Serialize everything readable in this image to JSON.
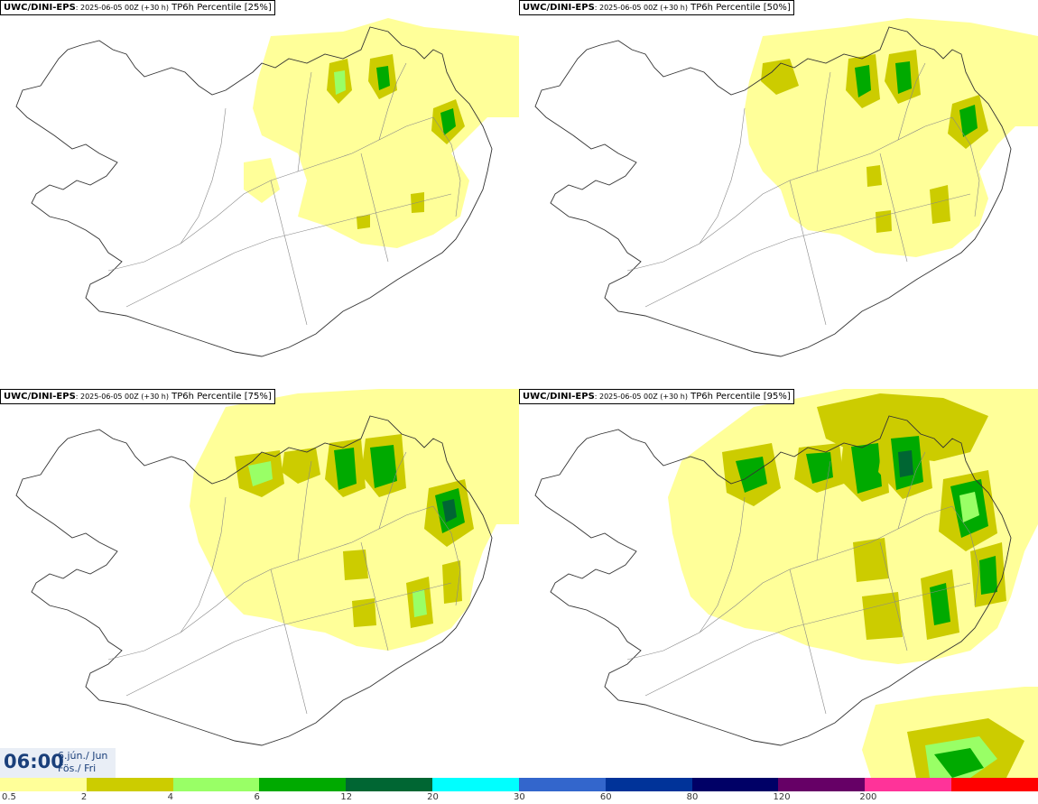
{
  "header": {
    "model": "UWC/DINI-EPS",
    "run": ": 2025-06-05 00Z (+30 h)",
    "field": "TP6h Percentile"
  },
  "panels": [
    {
      "percentile": "[25%]"
    },
    {
      "percentile": "[50%]"
    },
    {
      "percentile": "[75%]"
    },
    {
      "percentile": "[95%]"
    }
  ],
  "valid_time": {
    "time": "06:00",
    "date_line1": "6.jún./ Jun",
    "date_line2": "Fös./ Fri"
  },
  "colorbar": {
    "colors": [
      "#ffff99",
      "#cccc00",
      "#99ff66",
      "#00aa00",
      "#006633",
      "#00ffff",
      "#3366cc",
      "#003399",
      "#000066",
      "#660066",
      "#ff3399",
      "#ff0000"
    ],
    "labels": [
      "0.5",
      "2",
      "4",
      "6",
      "12",
      "20",
      "30",
      "60",
      "80",
      "120",
      "200"
    ]
  }
}
